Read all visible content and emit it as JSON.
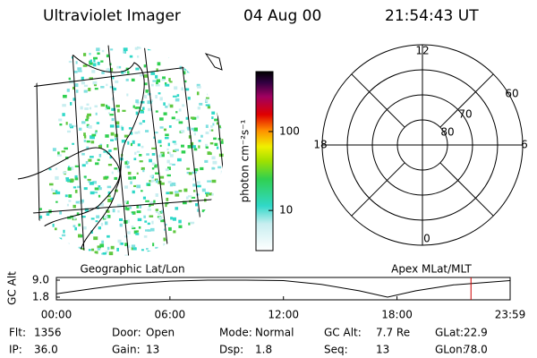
{
  "header": {
    "title": "Ultraviolet Imager",
    "date": "04 Aug 00",
    "time": "21:54:43 UT"
  },
  "colorbar": {
    "label": "photon cm⁻²s⁻¹",
    "log": true,
    "ylim": [
      3.1,
      575
    ],
    "yticks": [
      10,
      100
    ]
  },
  "map_label": "Geographic Lat/Lon",
  "polar": {
    "label": "Apex MLat/MLT",
    "lat_range": [
      50,
      90
    ],
    "lat_ticks": [
      60,
      70,
      80
    ],
    "mlt_ticks": [
      12,
      18,
      6,
      0
    ]
  },
  "altitude": {
    "axis_label": "GC Alt",
    "ylim": [
      1.8,
      9.0
    ],
    "yticks": [
      {
        "value": 9.0,
        "label": "9.0"
      },
      {
        "value": 1.8,
        "label": "1.8"
      }
    ],
    "xlim": [
      0,
      23.98
    ],
    "xticks": [
      {
        "value": 0,
        "label": "00:00"
      },
      {
        "value": 6,
        "label": "06:00"
      },
      {
        "value": 12,
        "label": "12:00"
      },
      {
        "value": 18,
        "label": "18:00"
      },
      {
        "value": 23.98,
        "label": "23:59"
      }
    ],
    "x": [
      0,
      2,
      4,
      6,
      8,
      10,
      12,
      14,
      16,
      17.5,
      19,
      21,
      23.98
    ],
    "values": [
      3.2,
      5.5,
      7.5,
      8.6,
      9.0,
      9.0,
      8.8,
      7.2,
      4.5,
      1.8,
      4.5,
      7.0,
      8.8
    ],
    "marker_hours": 21.91
  },
  "footer": [
    [
      {
        "label": "Flt:",
        "value": "1356"
      },
      {
        "label": "Door:",
        "value": "Open"
      },
      {
        "label": "Mode:",
        "value": "Normal"
      },
      {
        "label": "GC Alt:",
        "value": "7.7 Re"
      },
      {
        "label": "GLat:",
        "value": "22.9"
      }
    ],
    [
      {
        "label": "IP:",
        "value": "36.0"
      },
      {
        "label": "Gain:",
        "value": "13"
      },
      {
        "label": "Dsp:",
        "value": "1.8"
      },
      {
        "label": "Seq:",
        "value": "13"
      },
      {
        "label": "GLon:",
        "value": "78.0"
      }
    ]
  ]
}
